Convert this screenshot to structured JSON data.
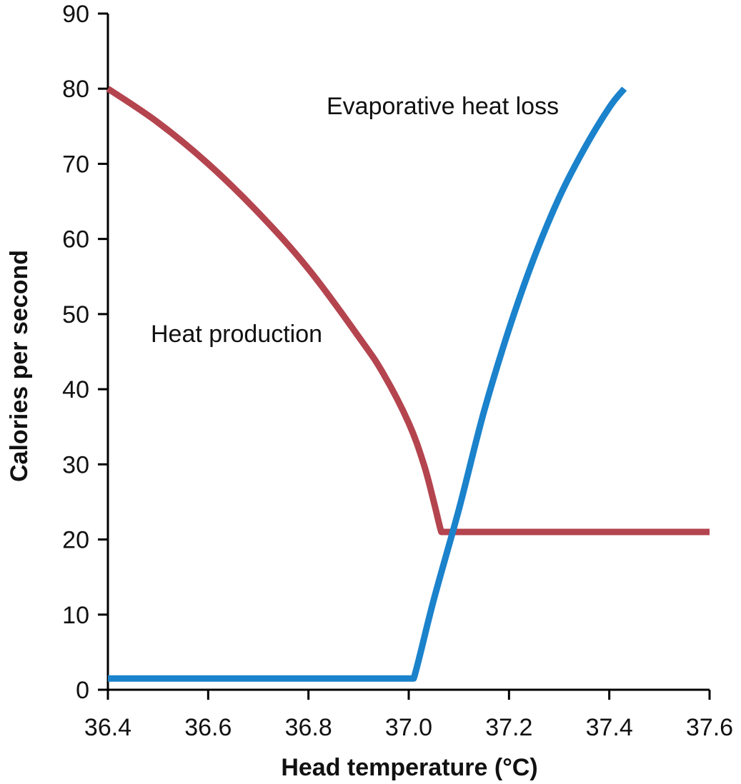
{
  "chart_data": {
    "type": "line",
    "title": "",
    "xlabel": "Head temperature (°C)",
    "ylabel": "Calories per second",
    "xlim": [
      36.4,
      37.6
    ],
    "ylim": [
      0,
      90
    ],
    "xticks": [
      "36.4",
      "36.6",
      "36.8",
      "37.0",
      "37.2",
      "37.4",
      "37.6"
    ],
    "yticks": [
      "0",
      "10",
      "20",
      "30",
      "40",
      "50",
      "60",
      "70",
      "80",
      "90"
    ],
    "grid": false,
    "legend": "none",
    "series": [
      {
        "label_text": "Heat production",
        "color": "#b4444e",
        "x": [
          36.4,
          36.5,
          36.6,
          36.7,
          36.8,
          36.9,
          36.95,
          37.0,
          37.03,
          37.05,
          37.065,
          37.07,
          37.2,
          37.4,
          37.6
        ],
        "y": [
          80,
          75.5,
          70,
          63.5,
          56,
          47,
          42,
          35.5,
          30,
          25,
          21,
          21,
          21,
          21,
          21
        ]
      },
      {
        "label_text": "Evaporative heat loss",
        "color": "#1b82cc",
        "x": [
          36.4,
          37.0,
          37.01,
          37.05,
          37.1,
          37.15,
          37.2,
          37.25,
          37.3,
          37.35,
          37.4,
          37.43
        ],
        "y": [
          1.5,
          1.5,
          1.5,
          12,
          24,
          37,
          48,
          57.5,
          65.5,
          72,
          77.5,
          80
        ]
      }
    ],
    "annotations": [
      {
        "text": "Heat production",
        "series": 0
      },
      {
        "text": "Evaporative heat loss",
        "series": 1
      }
    ]
  }
}
